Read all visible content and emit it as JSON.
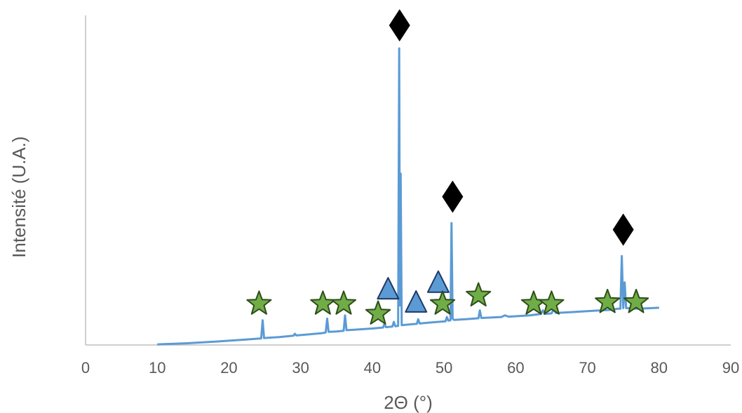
{
  "chart_data": {
    "type": "line",
    "title": "",
    "xlabel": "2Θ (°)",
    "ylabel": "Intensité (U.A.)",
    "xlim": [
      0,
      90
    ],
    "xticks": [
      0,
      10,
      20,
      30,
      40,
      50,
      60,
      70,
      80,
      90
    ],
    "ylim": [
      0,
      100
    ],
    "y_tick_labels_shown": false,
    "grid": false,
    "line_color": "#5b9bd5",
    "series": [
      {
        "values": [
          [
            10,
            0.2
          ],
          [
            14,
            0.5
          ],
          [
            18,
            1.0
          ],
          [
            22,
            1.6
          ],
          [
            24.5,
            2.0
          ],
          [
            24.7,
            7.5
          ],
          [
            24.9,
            2.1
          ],
          [
            27,
            2.4
          ],
          [
            29,
            2.8
          ],
          [
            29.2,
            3.4
          ],
          [
            29.4,
            2.9
          ],
          [
            31,
            3.2
          ],
          [
            33,
            3.6
          ],
          [
            33.5,
            3.8
          ],
          [
            33.7,
            8.0
          ],
          [
            33.9,
            4.0
          ],
          [
            35,
            4.1
          ],
          [
            36,
            4.3
          ],
          [
            36.2,
            9.0
          ],
          [
            36.4,
            4.5
          ],
          [
            38,
            4.7
          ],
          [
            40,
            5.0
          ],
          [
            41.5,
            5.3
          ],
          [
            41.7,
            6.5
          ],
          [
            41.9,
            5.4
          ],
          [
            42.8,
            5.6
          ],
          [
            43.0,
            7.0
          ],
          [
            43.2,
            5.7
          ],
          [
            43.6,
            5.8
          ],
          [
            43.75,
            90.0
          ],
          [
            43.85,
            12.0
          ],
          [
            43.95,
            52.0
          ],
          [
            44.1,
            6.0
          ],
          [
            45.5,
            6.3
          ],
          [
            46.2,
            6.4
          ],
          [
            46.4,
            7.8
          ],
          [
            46.6,
            6.5
          ],
          [
            48,
            6.8
          ],
          [
            50.2,
            7.2
          ],
          [
            50.4,
            8.5
          ],
          [
            50.6,
            7.4
          ],
          [
            50.9,
            7.5
          ],
          [
            51.05,
            37.0
          ],
          [
            51.2,
            8.0
          ],
          [
            51.4,
            7.6
          ],
          [
            53,
            7.8
          ],
          [
            54.8,
            8.1
          ],
          [
            55.0,
            10.5
          ],
          [
            55.2,
            8.2
          ],
          [
            58,
            8.5
          ],
          [
            58.5,
            9.0
          ],
          [
            59,
            8.6
          ],
          [
            62,
            9.0
          ],
          [
            63.5,
            9.4
          ],
          [
            63.8,
            10.5
          ],
          [
            64.1,
            9.4
          ],
          [
            65,
            9.6
          ],
          [
            65.3,
            10.8
          ],
          [
            65.6,
            9.7
          ],
          [
            68,
            10.0
          ],
          [
            71,
            10.4
          ],
          [
            73.5,
            10.7
          ],
          [
            74.2,
            11.0
          ],
          [
            74.6,
            11.0
          ],
          [
            74.8,
            27.0
          ],
          [
            75.0,
            11.2
          ],
          [
            75.2,
            19.0
          ],
          [
            75.4,
            11.2
          ],
          [
            77,
            11.0
          ],
          [
            79,
            11.2
          ],
          [
            80,
            11.3
          ]
        ]
      }
    ],
    "markers": [
      {
        "shape": "diamond",
        "color": "#000000",
        "x": 43.8,
        "y": 97
      },
      {
        "shape": "diamond",
        "color": "#000000",
        "x": 51.2,
        "y": 45
      },
      {
        "shape": "diamond",
        "color": "#000000",
        "x": 75.0,
        "y": 35
      },
      {
        "shape": "triangle",
        "color": "#5b9bd5",
        "x": 42.2,
        "y": 17
      },
      {
        "shape": "triangle",
        "color": "#5b9bd5",
        "x": 46.1,
        "y": 13
      },
      {
        "shape": "triangle",
        "color": "#5b9bd5",
        "x": 49.2,
        "y": 19
      },
      {
        "shape": "star",
        "color": "#70ad47",
        "x": 24.2,
        "y": 12.5
      },
      {
        "shape": "star",
        "color": "#70ad47",
        "x": 33.1,
        "y": 12.5
      },
      {
        "shape": "star",
        "color": "#70ad47",
        "x": 36.0,
        "y": 12.5
      },
      {
        "shape": "star",
        "color": "#70ad47",
        "x": 40.8,
        "y": 9.5
      },
      {
        "shape": "star",
        "color": "#70ad47",
        "x": 49.8,
        "y": 12.5
      },
      {
        "shape": "star",
        "color": "#70ad47",
        "x": 54.8,
        "y": 15
      },
      {
        "shape": "star",
        "color": "#70ad47",
        "x": 62.5,
        "y": 12.5
      },
      {
        "shape": "star",
        "color": "#70ad47",
        "x": 65.0,
        "y": 12.5
      },
      {
        "shape": "star",
        "color": "#70ad47",
        "x": 72.8,
        "y": 13
      },
      {
        "shape": "star",
        "color": "#70ad47",
        "x": 76.8,
        "y": 13
      }
    ]
  }
}
